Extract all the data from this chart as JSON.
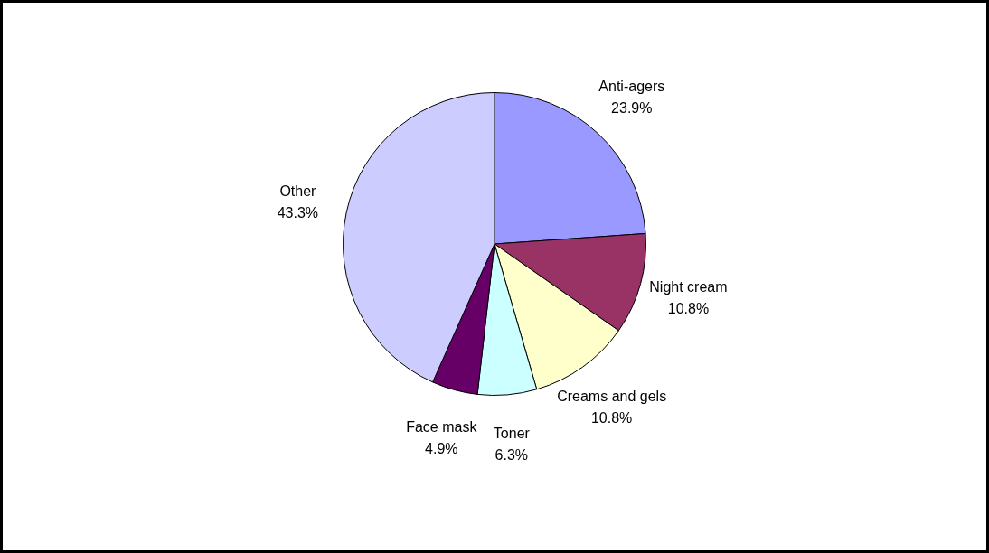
{
  "chart_data": {
    "type": "pie",
    "categories": [
      "Anti-agers",
      "Night cream",
      "Creams and gels",
      "Toner",
      "Face mask",
      "Other"
    ],
    "values": [
      23.9,
      10.8,
      10.8,
      6.3,
      4.9,
      43.3
    ],
    "colors": [
      "#9999ff",
      "#993366",
      "#ffffcc",
      "#ccffff",
      "#660066",
      "#ccccff"
    ],
    "value_labels": [
      "23.9%",
      "10.8%",
      "10.8%",
      "6.3%",
      "4.9%",
      "43.3%"
    ],
    "legend": false
  }
}
